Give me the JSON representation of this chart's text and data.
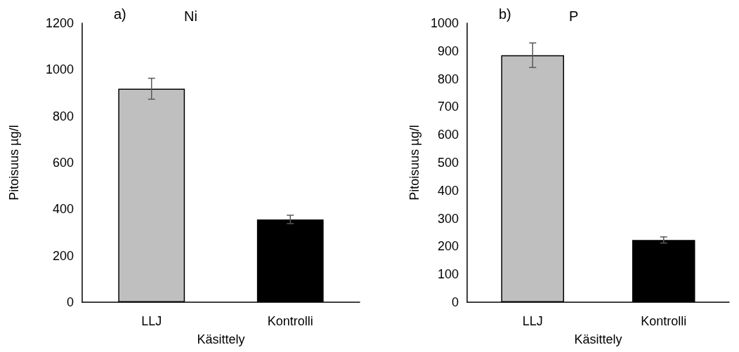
{
  "chart_data": [
    {
      "type": "bar",
      "title": "Ni",
      "annotations": [
        "a)"
      ],
      "xlabel": "Käsittely",
      "ylabel": "Pitoisuus µg/l",
      "categories": [
        "LLJ",
        "Kontrolli"
      ],
      "values": [
        918,
        356
      ],
      "errors": [
        45,
        18
      ],
      "colors": [
        "#bfbfbf",
        "#000000"
      ],
      "ylim": [
        0,
        1200
      ],
      "yticks": [
        0,
        200,
        400,
        600,
        800,
        1000,
        1200
      ],
      "grid": false
    },
    {
      "type": "bar",
      "title": "P",
      "annotations": [
        "b)"
      ],
      "xlabel": "Käsittely",
      "ylabel": "Pitoisuus µg/l",
      "categories": [
        "LLJ",
        "Kontrolli"
      ],
      "values": [
        885,
        223
      ],
      "errors": [
        44,
        11
      ],
      "colors": [
        "#bfbfbf",
        "#000000"
      ],
      "ylim": [
        0,
        1000
      ],
      "yticks": [
        0,
        100,
        200,
        300,
        400,
        500,
        600,
        700,
        800,
        900,
        1000
      ],
      "grid": false
    }
  ]
}
